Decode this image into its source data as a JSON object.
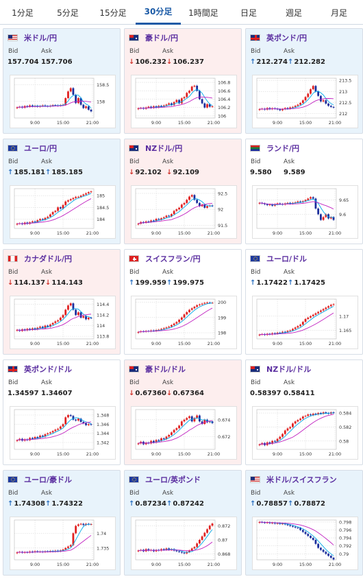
{
  "tabs": [
    {
      "label": "1分足"
    },
    {
      "label": "5分足"
    },
    {
      "label": "15分足"
    },
    {
      "label": "30分足",
      "active": true
    },
    {
      "label": "1時間足"
    },
    {
      "label": "日足"
    },
    {
      "label": "週足"
    },
    {
      "label": "月足"
    }
  ],
  "labels": {
    "bid": "Bid",
    "ask": "Ask"
  },
  "colors": {
    "up_candle": "#e02020",
    "down_candle": "#1a2d9c",
    "ma_short": "#00a8e8",
    "ma_long": "#c020c0",
    "title": "#5b2fa0",
    "tab_active": "#1a5aa6",
    "arrow_up": "#2a70c0",
    "arrow_down": "#d0322a",
    "card_blue": "#e8f3fb",
    "card_pink": "#fdeeee"
  },
  "x_ticks": [
    "9:00",
    "15:00",
    "21:00"
  ],
  "cards": [
    {
      "name": "米ドル/円",
      "flag": "us-jp-flag",
      "bg": "blue",
      "bid": "157.704",
      "ask": "157.706",
      "bid_dir": "",
      "ask_dir": "",
      "chart_data": {
        "type": "candlestick",
        "y_ticks": [
          "158.5",
          "158"
        ],
        "ylim": [
          157.5,
          158.7
        ],
        "x_ticks": [
          "9:00",
          "15:00",
          "21:00"
        ],
        "close": [
          157.82,
          157.84,
          157.81,
          157.86,
          157.84,
          157.88,
          157.85,
          157.87,
          157.84,
          157.86,
          157.88,
          157.86,
          157.85,
          157.87,
          157.89,
          157.88,
          157.87,
          157.89,
          157.9,
          158.1,
          158.3,
          158.4,
          158.2,
          157.95,
          158.1,
          157.9,
          157.8,
          157.85,
          157.75,
          157.7
        ]
      }
    },
    {
      "name": "豪ドル/円",
      "flag": "au-jp-flag",
      "bg": "pink",
      "bid": "106.232",
      "ask": "106.237",
      "bid_dir": "down",
      "ask_dir": "down",
      "chart_data": {
        "type": "candlestick",
        "y_ticks": [
          "106.8",
          "106.6",
          "106.4",
          "106.2",
          "106"
        ],
        "ylim": [
          105.95,
          106.9
        ],
        "x_ticks": [
          "9:00",
          "15:00",
          "21:00"
        ],
        "close": [
          106.18,
          106.19,
          106.17,
          106.2,
          106.22,
          106.19,
          106.23,
          106.2,
          106.24,
          106.22,
          106.25,
          106.27,
          106.3,
          106.26,
          106.33,
          106.38,
          106.3,
          106.42,
          106.45,
          106.55,
          106.6,
          106.7,
          106.72,
          106.6,
          106.4,
          106.3,
          106.2,
          106.28,
          106.22,
          106.23
        ]
      }
    },
    {
      "name": "英ポンド/円",
      "flag": "gb-jp-flag",
      "bg": "blue",
      "bid": "212.274",
      "ask": "212.282",
      "bid_dir": "up",
      "ask_dir": "up",
      "chart_data": {
        "type": "candlestick",
        "y_ticks": [
          "213.5",
          "213",
          "212.5",
          "212"
        ],
        "ylim": [
          211.8,
          213.6
        ],
        "x_ticks": [
          "9:00",
          "15:00",
          "21:00"
        ],
        "close": [
          212.2,
          212.22,
          212.18,
          212.25,
          212.2,
          212.24,
          212.22,
          212.19,
          212.15,
          212.2,
          212.25,
          212.22,
          212.28,
          212.3,
          212.35,
          212.4,
          212.48,
          212.6,
          212.75,
          212.9,
          213.1,
          213.25,
          213.0,
          212.8,
          212.55,
          212.6,
          212.45,
          212.35,
          212.3,
          212.27
        ]
      }
    },
    {
      "name": "ユーロ/円",
      "flag": "eu-jp-flag",
      "bg": "blue",
      "bid": "185.181",
      "ask": "185.185",
      "bid_dir": "up",
      "ask_dir": "up",
      "chart_data": {
        "type": "candlestick",
        "y_ticks": [
          "185",
          "184.5",
          "184"
        ],
        "ylim": [
          183.6,
          185.3
        ],
        "x_ticks": [
          "9:00",
          "15:00",
          "21:00"
        ],
        "close": [
          183.8,
          183.82,
          183.78,
          183.85,
          183.8,
          183.86,
          183.9,
          183.88,
          183.95,
          184.0,
          183.98,
          184.05,
          184.1,
          184.2,
          184.3,
          184.35,
          184.5,
          184.45,
          184.6,
          184.75,
          184.8,
          184.85,
          184.9,
          184.95,
          184.95,
          185.0,
          185.05,
          185.1,
          185.15,
          185.18
        ]
      }
    },
    {
      "name": "NZドル/円",
      "flag": "nz-jp-flag",
      "bg": "pink",
      "bid": "92.102",
      "ask": "92.109",
      "bid_dir": "down",
      "ask_dir": "down",
      "chart_data": {
        "type": "candlestick",
        "y_ticks": [
          "92.5",
          "92",
          "91.5"
        ],
        "ylim": [
          91.4,
          92.65
        ],
        "x_ticks": [
          "9:00",
          "15:00",
          "21:00"
        ],
        "close": [
          91.55,
          91.6,
          91.58,
          91.62,
          91.6,
          91.65,
          91.63,
          91.7,
          91.68,
          91.72,
          91.75,
          91.8,
          91.78,
          91.85,
          91.95,
          92.0,
          92.05,
          92.15,
          92.2,
          92.3,
          92.4,
          92.45,
          92.3,
          92.2,
          92.1,
          92.15,
          92.05,
          92.1,
          92.12,
          92.1
        ]
      }
    },
    {
      "name": "ランド/円",
      "flag": "za-jp-flag",
      "bg": "",
      "bid": "9.580",
      "ask": "9.589",
      "bid_dir": "",
      "ask_dir": "",
      "chart_data": {
        "type": "candlestick",
        "y_ticks": [
          "9.65",
          "9.6"
        ],
        "ylim": [
          9.55,
          9.69
        ],
        "x_ticks": [
          "9:00",
          "15:00",
          "21:00"
        ],
        "close": [
          9.64,
          9.638,
          9.635,
          9.632,
          9.634,
          9.63,
          9.635,
          9.638,
          9.636,
          9.634,
          9.638,
          9.64,
          9.637,
          9.64,
          9.642,
          9.645,
          9.643,
          9.646,
          9.65,
          9.655,
          9.66,
          9.655,
          9.62,
          9.6,
          9.58,
          9.59,
          9.6,
          9.585,
          9.59,
          9.58
        ]
      }
    },
    {
      "name": "カナダドル/円",
      "flag": "ca-jp-flag",
      "bg": "pink",
      "bid": "114.137",
      "ask": "114.143",
      "bid_dir": "down",
      "ask_dir": "down",
      "chart_data": {
        "type": "candlestick",
        "y_ticks": [
          "114.4",
          "114.2",
          "114",
          "113.8"
        ],
        "ylim": [
          113.75,
          114.5
        ],
        "x_ticks": [
          "9:00",
          "15:00",
          "21:00"
        ],
        "close": [
          113.92,
          113.9,
          113.93,
          113.91,
          113.94,
          113.92,
          113.95,
          113.93,
          113.96,
          113.98,
          113.95,
          114.0,
          113.98,
          114.02,
          114.05,
          114.08,
          114.1,
          114.15,
          114.2,
          114.3,
          114.38,
          114.42,
          114.3,
          114.2,
          114.25,
          114.15,
          114.18,
          114.12,
          114.15,
          114.14
        ]
      }
    },
    {
      "name": "スイスフラン/円",
      "flag": "ch-jp-flag",
      "bg": "",
      "bid": "199.959",
      "ask": "199.975",
      "bid_dir": "up",
      "ask_dir": "up",
      "chart_data": {
        "type": "candlestick",
        "y_ticks": [
          "200",
          "199",
          "198"
        ],
        "ylim": [
          197.6,
          200.2
        ],
        "x_ticks": [
          "9:00",
          "15:00",
          "21:00"
        ],
        "close": [
          198.05,
          198.1,
          198.08,
          198.12,
          198.1,
          198.15,
          198.12,
          198.18,
          198.2,
          198.25,
          198.3,
          198.35,
          198.4,
          198.5,
          198.6,
          198.7,
          198.85,
          199.0,
          199.2,
          199.35,
          199.5,
          199.6,
          199.7,
          199.8,
          199.85,
          199.9,
          199.95,
          199.97,
          199.96,
          199.96
        ]
      }
    },
    {
      "name": "ユーロ/ドル",
      "flag": "eu-us-flag",
      "bg": "",
      "bid": "1.17422",
      "ask": "1.17425",
      "bid_dir": "up",
      "ask_dir": "up",
      "chart_data": {
        "type": "candlestick",
        "y_ticks": [
          "1.17",
          "1.165"
        ],
        "ylim": [
          1.162,
          1.176
        ],
        "x_ticks": [
          "9:00",
          "15:00",
          "21:00"
        ],
        "close": [
          1.1635,
          1.1637,
          1.1634,
          1.1638,
          1.1636,
          1.164,
          1.1638,
          1.1642,
          1.1641,
          1.1645,
          1.1643,
          1.1648,
          1.165,
          1.1655,
          1.166,
          1.1665,
          1.167,
          1.168,
          1.169,
          1.1695,
          1.17,
          1.1705,
          1.171,
          1.1715,
          1.172,
          1.1725,
          1.173,
          1.1735,
          1.174,
          1.1742
        ]
      }
    },
    {
      "name": "英ポンド/ドル",
      "flag": "gb-us-flag",
      "bg": "",
      "bid": "1.34597",
      "ask": "1.34607",
      "bid_dir": "",
      "ask_dir": "",
      "chart_data": {
        "type": "candlestick",
        "y_ticks": [
          "1.348",
          "1.346",
          "1.344",
          "1.342"
        ],
        "ylim": [
          1.3405,
          1.3492
        ],
        "x_ticks": [
          "9:00",
          "15:00",
          "21:00"
        ],
        "close": [
          1.3425,
          1.3428,
          1.3424,
          1.3427,
          1.3425,
          1.343,
          1.3428,
          1.3432,
          1.343,
          1.3435,
          1.3433,
          1.3438,
          1.344,
          1.3442,
          1.3445,
          1.3448,
          1.345,
          1.3455,
          1.346,
          1.3475,
          1.348,
          1.3478,
          1.347,
          1.3468,
          1.3472,
          1.3465,
          1.3462,
          1.3458,
          1.346,
          1.3459
        ]
      }
    },
    {
      "name": "豪ドル/ドル",
      "flag": "au-us-flag",
      "bg": "pink",
      "bid": "0.67360",
      "ask": "0.67364",
      "bid_dir": "down",
      "ask_dir": "down",
      "chart_data": {
        "type": "candlestick",
        "y_ticks": [
          "0.674",
          "0.672"
        ],
        "ylim": [
          0.6705,
          0.6752
        ],
        "x_ticks": [
          "9:00",
          "15:00",
          "21:00"
        ],
        "close": [
          0.6712,
          0.6714,
          0.6711,
          0.6713,
          0.6712,
          0.6715,
          0.6713,
          0.6716,
          0.6715,
          0.6718,
          0.6717,
          0.672,
          0.6722,
          0.6725,
          0.6728,
          0.673,
          0.6733,
          0.6738,
          0.674,
          0.6742,
          0.6744,
          0.6738,
          0.6742,
          0.6745,
          0.6738,
          0.6735,
          0.674,
          0.6737,
          0.6738,
          0.6736
        ]
      }
    },
    {
      "name": "NZドル/ドル",
      "flag": "nz-us-flag",
      "bg": "",
      "bid": "0.58397",
      "ask": "0.58411",
      "bid_dir": "",
      "ask_dir": "",
      "chart_data": {
        "type": "candlestick",
        "y_ticks": [
          "0.584",
          "0.582",
          "0.58"
        ],
        "ylim": [
          0.5788,
          0.5845
        ],
        "x_ticks": [
          "9:00",
          "15:00",
          "21:00"
        ],
        "close": [
          0.5795,
          0.5797,
          0.5794,
          0.5798,
          0.5796,
          0.58,
          0.5799,
          0.5803,
          0.5806,
          0.581,
          0.5815,
          0.5818,
          0.582,
          0.5825,
          0.5828,
          0.583,
          0.5832,
          0.5835,
          0.5836,
          0.5838,
          0.5837,
          0.5839,
          0.5838,
          0.584,
          0.5839,
          0.5841,
          0.584,
          0.5839,
          0.5841,
          0.584
        ]
      }
    },
    {
      "name": "ユーロ/豪ドル",
      "flag": "eu-au-flag",
      "bg": "blue",
      "bid": "1.74308",
      "ask": "1.74322",
      "bid_dir": "up",
      "ask_dir": "up",
      "chart_data": {
        "type": "candlestick",
        "y_ticks": [
          "1.74",
          "1.735"
        ],
        "ylim": [
          1.731,
          1.7445
        ],
        "x_ticks": [
          "9:00",
          "15:00",
          "21:00"
        ],
        "close": [
          1.7335,
          1.7337,
          1.7334,
          1.7336,
          1.7335,
          1.7338,
          1.7336,
          1.7339,
          1.7337,
          1.7338,
          1.7336,
          1.7339,
          1.7338,
          1.734,
          1.7338,
          1.7341,
          1.7339,
          1.7342,
          1.7345,
          1.735,
          1.7355,
          1.736,
          1.74,
          1.7425,
          1.743,
          1.7432,
          1.7428,
          1.7432,
          1.743,
          1.7431
        ]
      }
    },
    {
      "name": "ユーロ/英ポンド",
      "flag": "eu-gb-flag",
      "bg": "blue",
      "bid": "0.87234",
      "ask": "0.87242",
      "bid_dir": "up",
      "ask_dir": "up",
      "chart_data": {
        "type": "candlestick",
        "y_ticks": [
          "0.872",
          "0.87",
          "0.868"
        ],
        "ylim": [
          0.8672,
          0.8728
        ],
        "x_ticks": [
          "9:00",
          "15:00",
          "21:00"
        ],
        "close": [
          0.8685,
          0.8686,
          0.8684,
          0.8687,
          0.8685,
          0.8686,
          0.8684,
          0.8686,
          0.8685,
          0.8687,
          0.8686,
          0.8688,
          0.8686,
          0.8687,
          0.8685,
          0.8684,
          0.8683,
          0.8682,
          0.8681,
          0.8683,
          0.8685,
          0.8688,
          0.869,
          0.8695,
          0.87,
          0.8705,
          0.871,
          0.8715,
          0.872,
          0.8723
        ]
      }
    },
    {
      "name": "米ドル/スイスフラン",
      "flag": "us-ch-flag",
      "bg": "blue",
      "bid": "0.78857",
      "ask": "0.78872",
      "bid_dir": "up",
      "ask_dir": "up",
      "chart_data": {
        "type": "candlestick",
        "y_ticks": [
          "0.798",
          "0.796",
          "0.794",
          "0.792",
          "0.79"
        ],
        "ylim": [
          0.7885,
          0.7985
        ],
        "x_ticks": [
          "9:00",
          "15:00",
          "21:00"
        ],
        "close": [
          0.798,
          0.7979,
          0.7978,
          0.7979,
          0.7977,
          0.7978,
          0.7976,
          0.7977,
          0.7975,
          0.7976,
          0.7974,
          0.7972,
          0.797,
          0.7968,
          0.7966,
          0.7965,
          0.796,
          0.7955,
          0.795,
          0.7945,
          0.794,
          0.7935,
          0.7925,
          0.7915,
          0.791,
          0.7905,
          0.79,
          0.7895,
          0.789,
          0.7886
        ]
      }
    }
  ]
}
